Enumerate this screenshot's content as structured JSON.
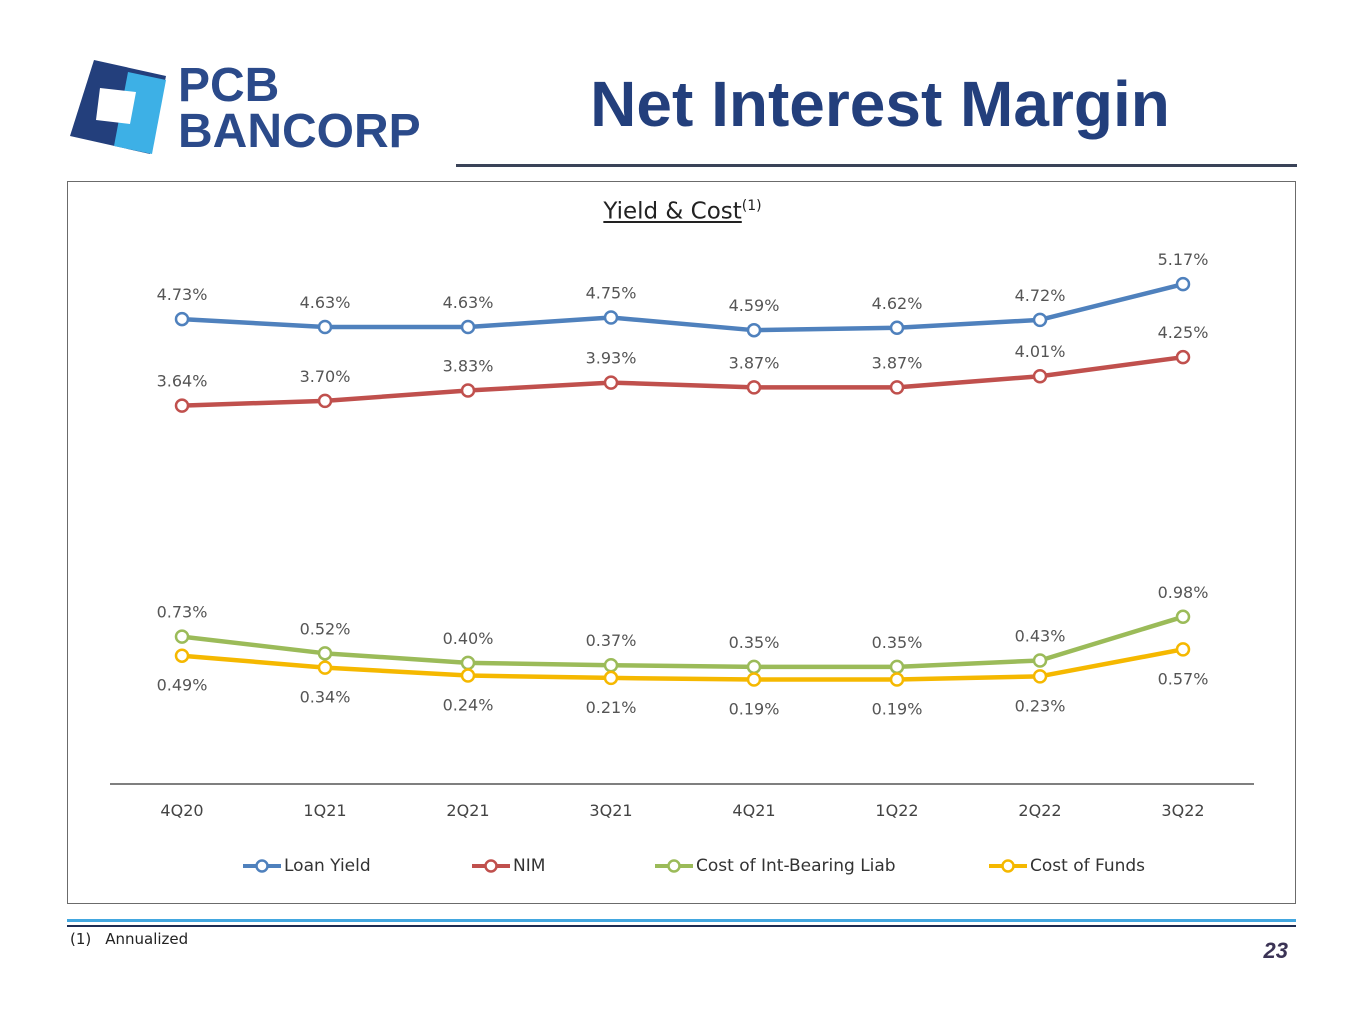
{
  "header": {
    "logo_line1": "PCB",
    "logo_line2": "BANCORP",
    "title": "Net Interest Margin"
  },
  "colors": {
    "brand_dark_blue": "#233f7c",
    "brand_light_blue": "#3db0e6",
    "loan_yield": "#4f81bd",
    "nim": "#c0504d",
    "cost_int_bearing": "#9bbb59",
    "cost_of_funds": "#f5b800"
  },
  "chart_data": {
    "type": "line",
    "title": "Yield & Cost",
    "title_superscript": "(1)",
    "categories": [
      "4Q20",
      "1Q21",
      "2Q21",
      "3Q21",
      "4Q21",
      "1Q22",
      "2Q22",
      "3Q22"
    ],
    "series": [
      {
        "name": "Loan Yield",
        "values": [
          4.73,
          4.63,
          4.63,
          4.75,
          4.59,
          4.62,
          4.72,
          5.17
        ],
        "labels": [
          "4.73%",
          "4.63%",
          "4.63%",
          "4.75%",
          "4.59%",
          "4.62%",
          "4.72%",
          "5.17%"
        ],
        "color": "#4f81bd",
        "label_position": "above"
      },
      {
        "name": "NIM",
        "values": [
          3.64,
          3.7,
          3.83,
          3.93,
          3.87,
          3.87,
          4.01,
          4.25
        ],
        "labels": [
          "3.64%",
          "3.70%",
          "3.83%",
          "3.93%",
          "3.87%",
          "3.87%",
          "4.01%",
          "4.25%"
        ],
        "color": "#c0504d",
        "label_position": "above"
      },
      {
        "name": "Cost of Int-Bearing Liab",
        "values": [
          0.73,
          0.52,
          0.4,
          0.37,
          0.35,
          0.35,
          0.43,
          0.98
        ],
        "labels": [
          "0.73%",
          "0.52%",
          "0.40%",
          "0.37%",
          "0.35%",
          "0.35%",
          "0.43%",
          "0.98%"
        ],
        "color": "#9bbb59",
        "label_position": "above"
      },
      {
        "name": "Cost of Funds",
        "values": [
          0.49,
          0.34,
          0.24,
          0.21,
          0.19,
          0.19,
          0.23,
          0.57
        ],
        "labels": [
          "0.49%",
          "0.34%",
          "0.24%",
          "0.21%",
          "0.19%",
          "0.19%",
          "0.23%",
          "0.57%"
        ],
        "color": "#f5b800",
        "label_position": "below"
      }
    ],
    "ylim": [
      -1.0,
      5.6
    ],
    "grid": false,
    "legend": "bottom"
  },
  "footer": {
    "footnote_number": "(1)",
    "footnote_text": "Annualized",
    "page_number": "23"
  }
}
